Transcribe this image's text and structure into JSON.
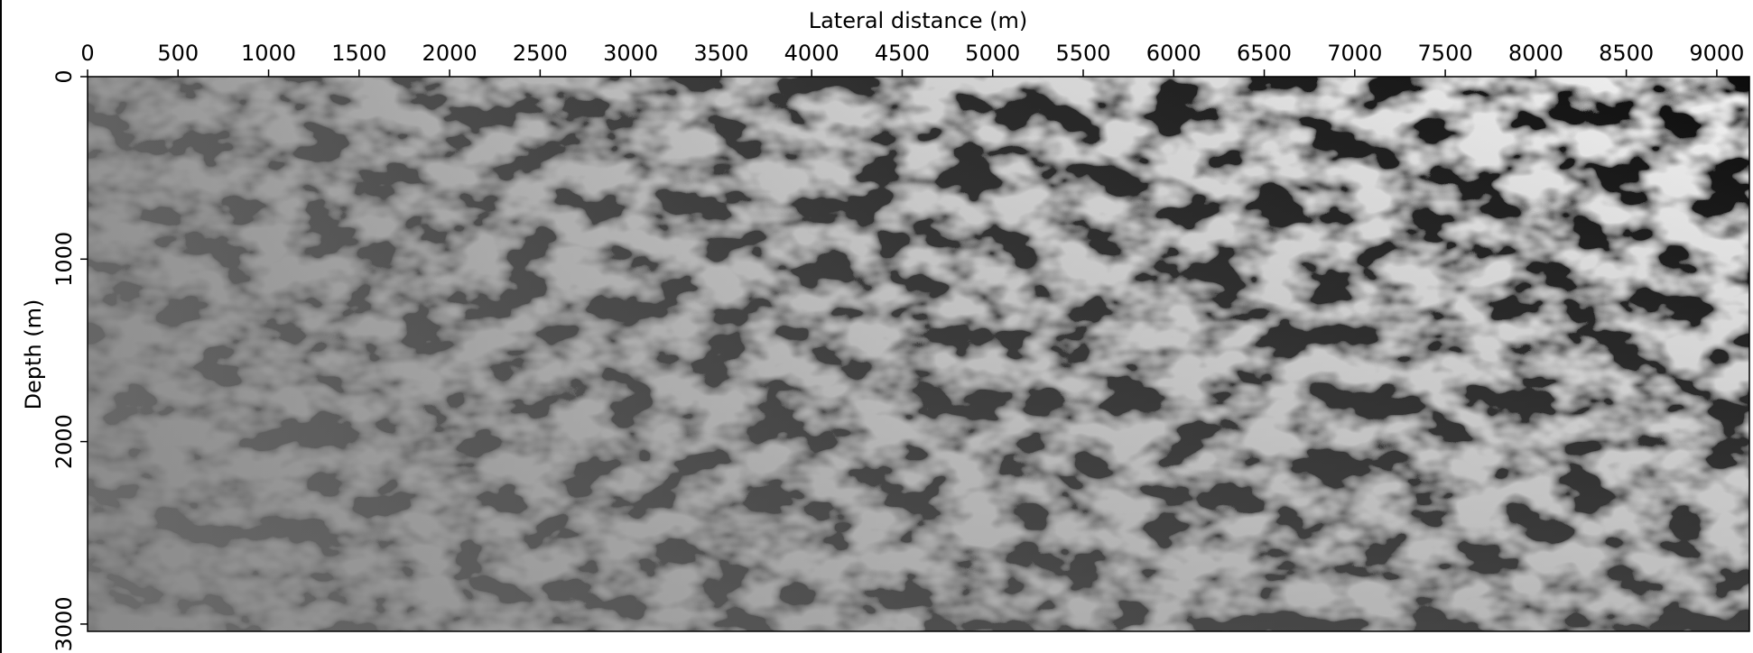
{
  "chart_data": {
    "type": "image",
    "title": "Lateral distance (m)",
    "y_label": "Depth (m)",
    "xlim": [
      0,
      9180
    ],
    "xticks": [
      0,
      500,
      1000,
      1500,
      2000,
      2500,
      3000,
      3500,
      4000,
      4500,
      5000,
      5500,
      6000,
      6500,
      7000,
      7500,
      8000,
      8500,
      9000
    ],
    "ylim": [
      0,
      3040
    ],
    "yticks": [
      0,
      1000,
      2000,
      3000
    ],
    "y_inverted": true,
    "colormap": "gray"
  }
}
